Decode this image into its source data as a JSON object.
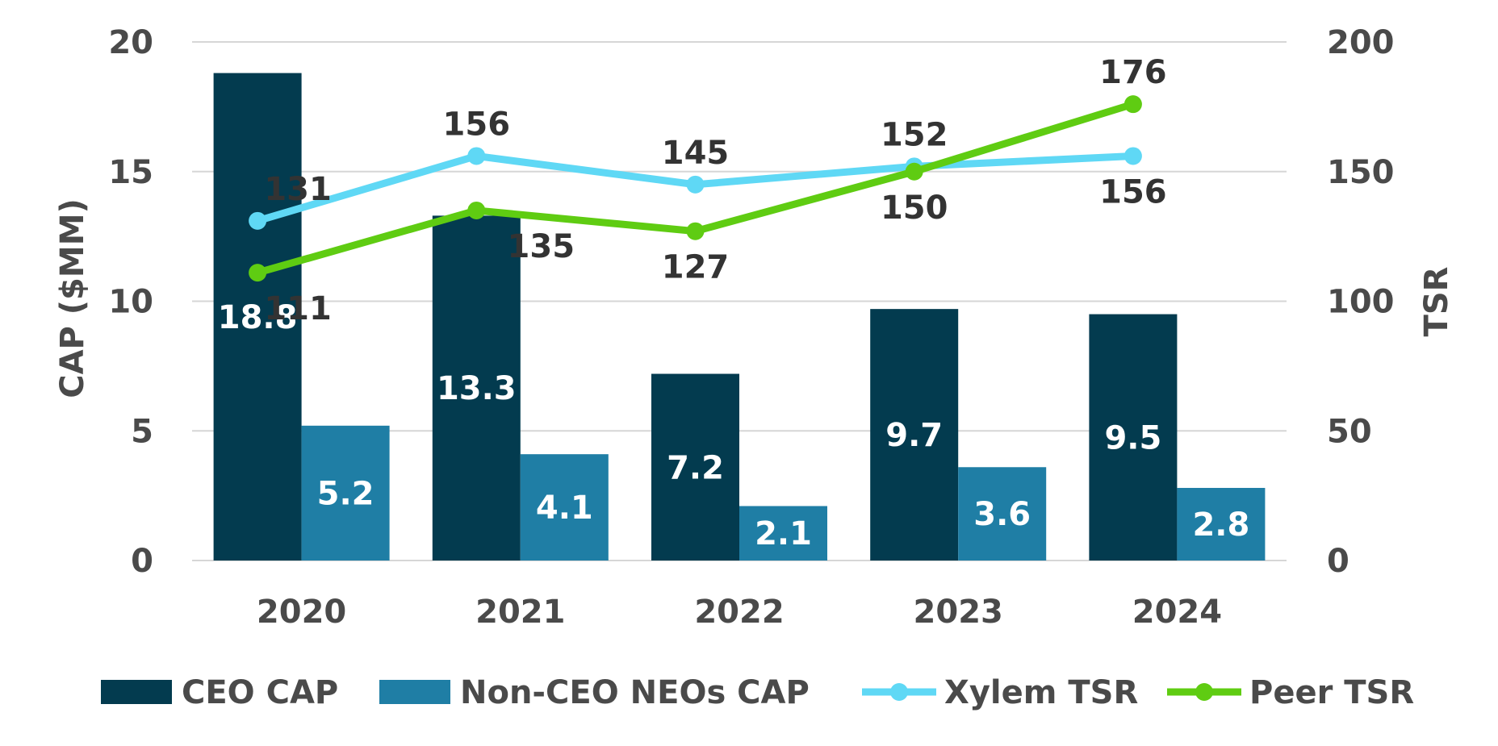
{
  "chart_data": {
    "type": "bar",
    "categories": [
      "2020",
      "2021",
      "2022",
      "2023",
      "2024"
    ],
    "title": "",
    "ylabel": "CAP ($MM)",
    "y2label": "TSR",
    "ylim": [
      0,
      20
    ],
    "y2lim": [
      0,
      200
    ],
    "yticks": [
      "0",
      "5",
      "10",
      "15",
      "20"
    ],
    "y2ticks": [
      "0",
      "50",
      "100",
      "150",
      "200"
    ],
    "grid": true,
    "legend": "bottom",
    "series": [
      {
        "name": "CEO CAP",
        "kind": "bar",
        "axis": "left",
        "color": "#033b4f",
        "values": [
          18.8,
          13.3,
          7.2,
          9.7,
          9.5
        ],
        "labels": [
          "18.8",
          "13.3",
          "7.2",
          "9.7",
          "9.5"
        ]
      },
      {
        "name": "Non-CEO NEOs CAP",
        "kind": "bar",
        "axis": "left",
        "color": "#1f7ea5",
        "values": [
          5.2,
          4.1,
          2.1,
          3.6,
          2.8
        ],
        "labels": [
          "5.2",
          "4.1",
          "2.1",
          "3.6",
          "2.8"
        ]
      },
      {
        "name": "Xylem TSR",
        "kind": "line",
        "axis": "right",
        "color": "#5fd8f5",
        "values": [
          131,
          156,
          145,
          152,
          156
        ],
        "labels": [
          "131",
          "156",
          "145",
          "152",
          "156"
        ]
      },
      {
        "name": "Peer TSR",
        "kind": "line",
        "axis": "right",
        "color": "#5fcc12",
        "values": [
          111,
          135,
          127,
          150,
          176
        ],
        "labels": [
          "111",
          "135",
          "127",
          "150",
          "176"
        ]
      }
    ]
  }
}
